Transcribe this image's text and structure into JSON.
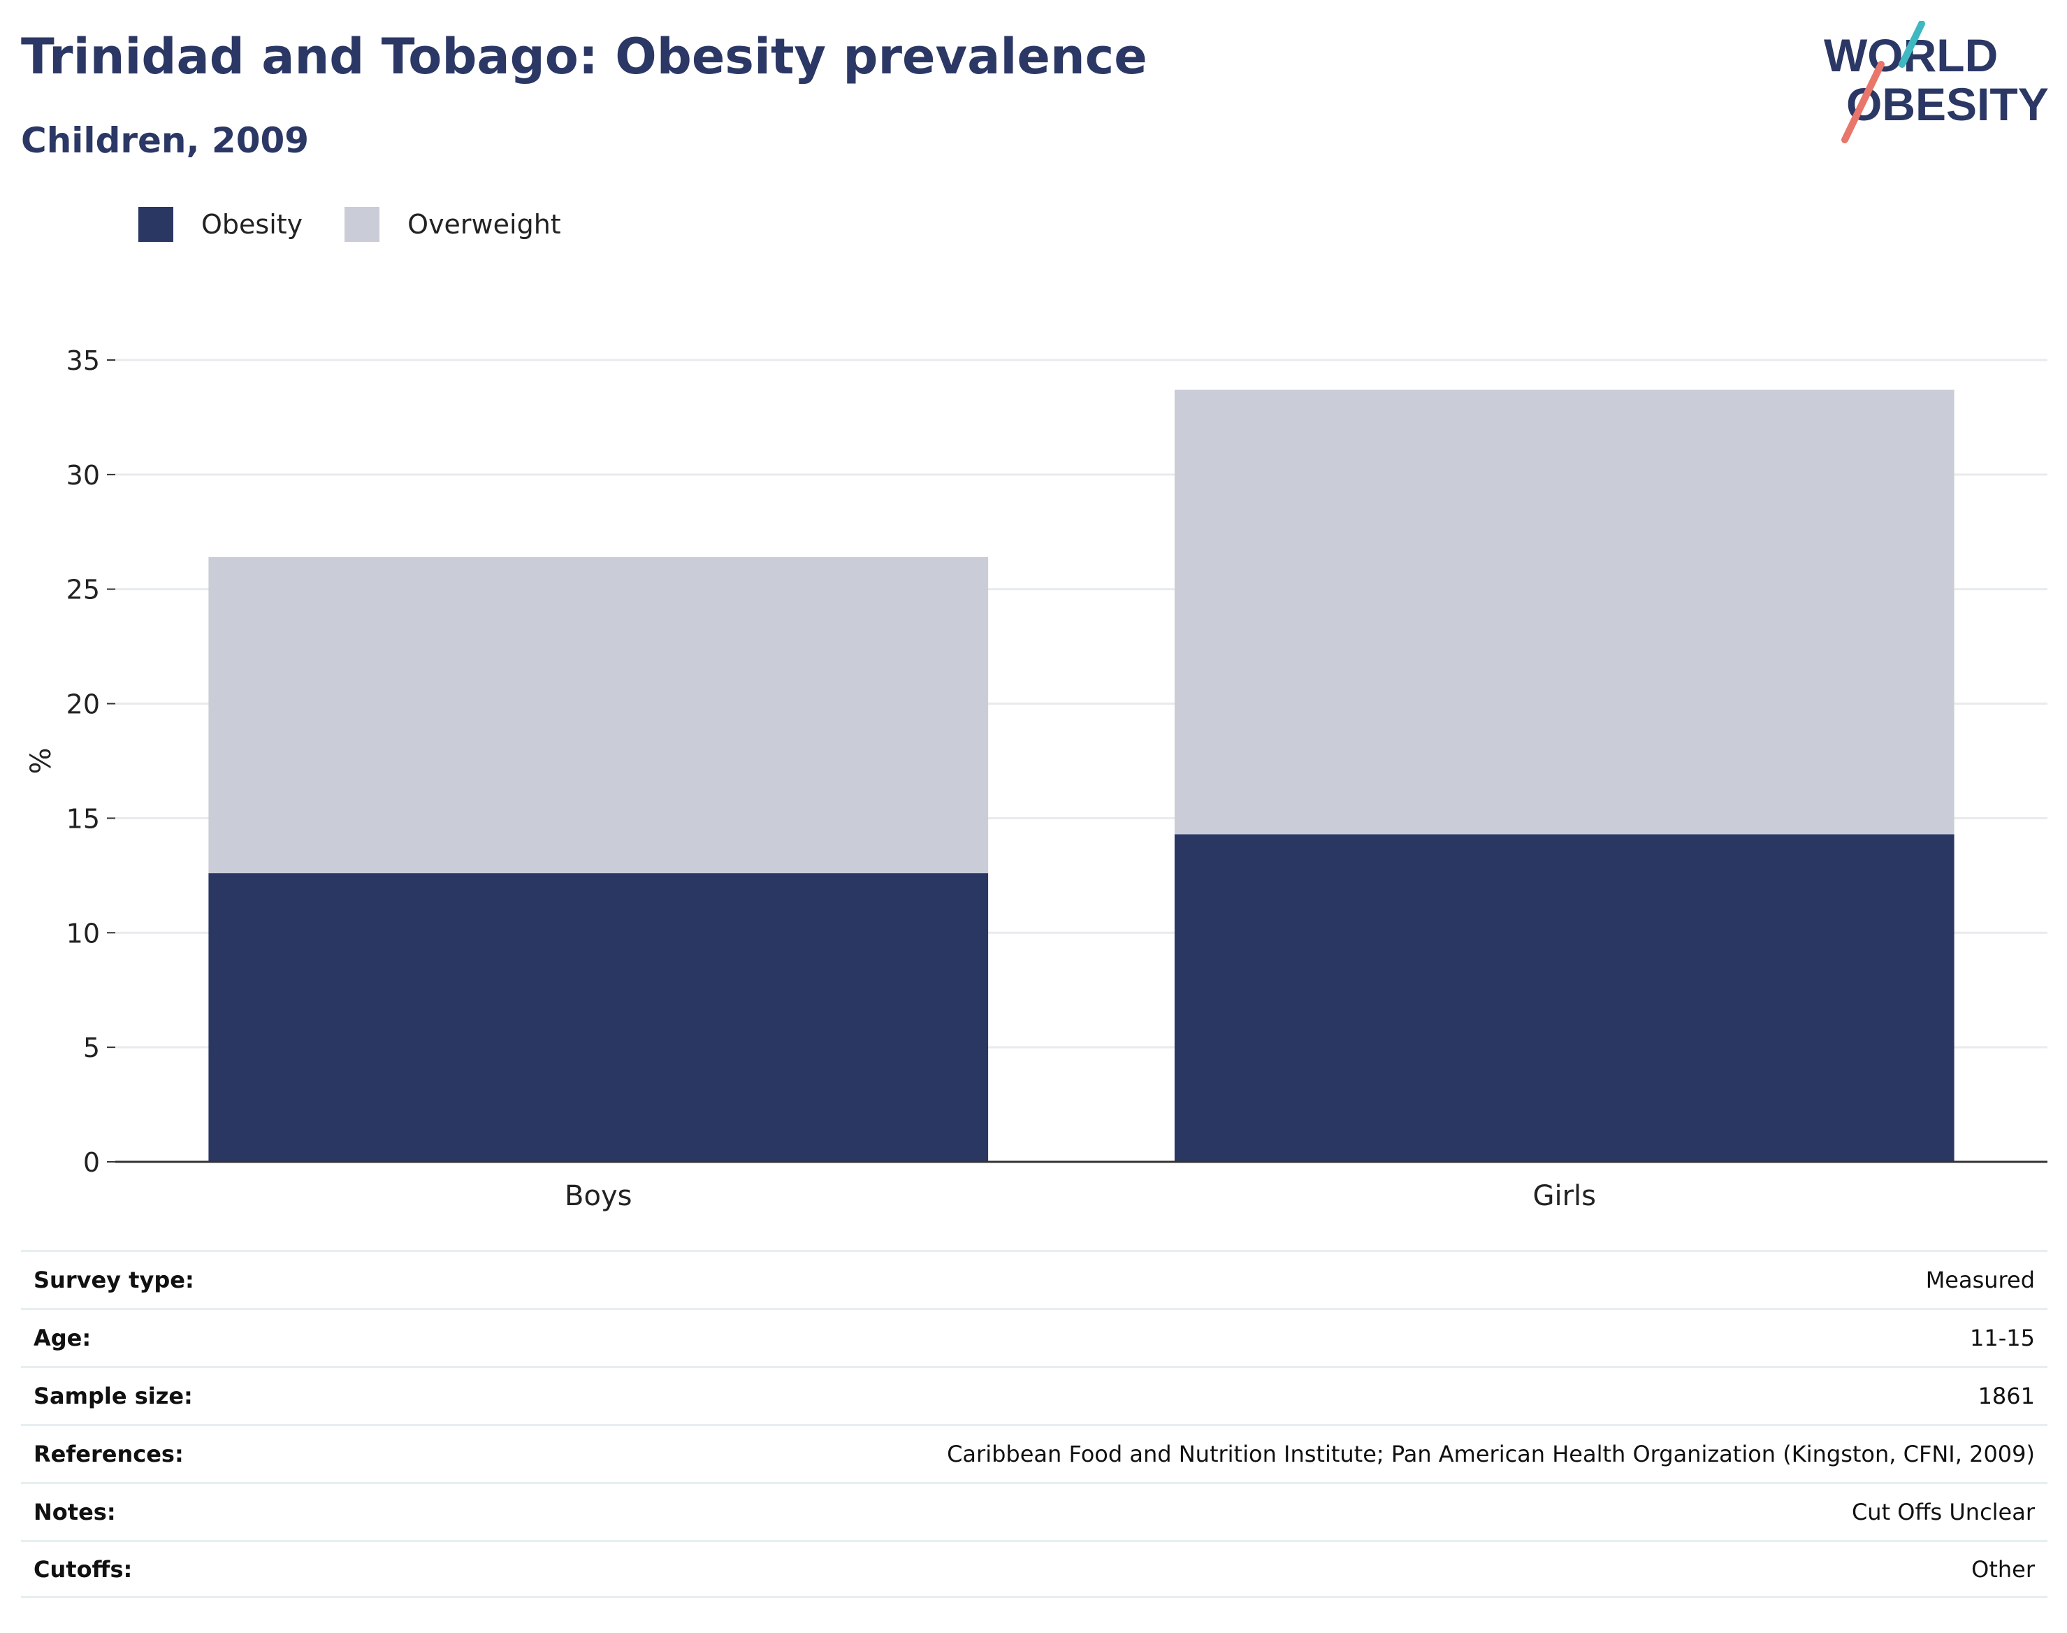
{
  "header": {
    "title": "Trinidad and Tobago: Obesity prevalence",
    "subtitle": "Children, 2009"
  },
  "logo": {
    "line1": "WORLD",
    "line2": "OBESITY"
  },
  "colors": {
    "obesity": "#2b3763",
    "overweight": "#cacdd8",
    "grid": "#e8eaee",
    "axis": "#333333",
    "logo_text": "#2b3764",
    "logo_teal": "#3fb8c1",
    "logo_coral": "#e8766a"
  },
  "chart_data": {
    "type": "bar",
    "stacked": true,
    "categories": [
      "Boys",
      "Girls"
    ],
    "series": [
      {
        "name": "Obesity",
        "values": [
          12.6,
          14.3
        ]
      },
      {
        "name": "Overweight",
        "values": [
          13.8,
          19.4
        ]
      }
    ],
    "ylabel": "%",
    "xlabel": "",
    "ylim": [
      0,
      35
    ],
    "yticks": [
      0,
      5,
      10,
      15,
      20,
      25,
      30,
      35
    ],
    "grid": true,
    "legend_position": "top-left"
  },
  "info": [
    {
      "key": "Survey type:",
      "value": "Measured"
    },
    {
      "key": "Age:",
      "value": "11-15"
    },
    {
      "key": "Sample size:",
      "value": "1861"
    },
    {
      "key": "References:",
      "value": "Caribbean Food and Nutrition Institute; Pan American Health Organization (Kingston, CFNI, 2009)"
    },
    {
      "key": "Notes:",
      "value": "Cut Offs Unclear"
    },
    {
      "key": "Cutoffs:",
      "value": "Other"
    }
  ]
}
